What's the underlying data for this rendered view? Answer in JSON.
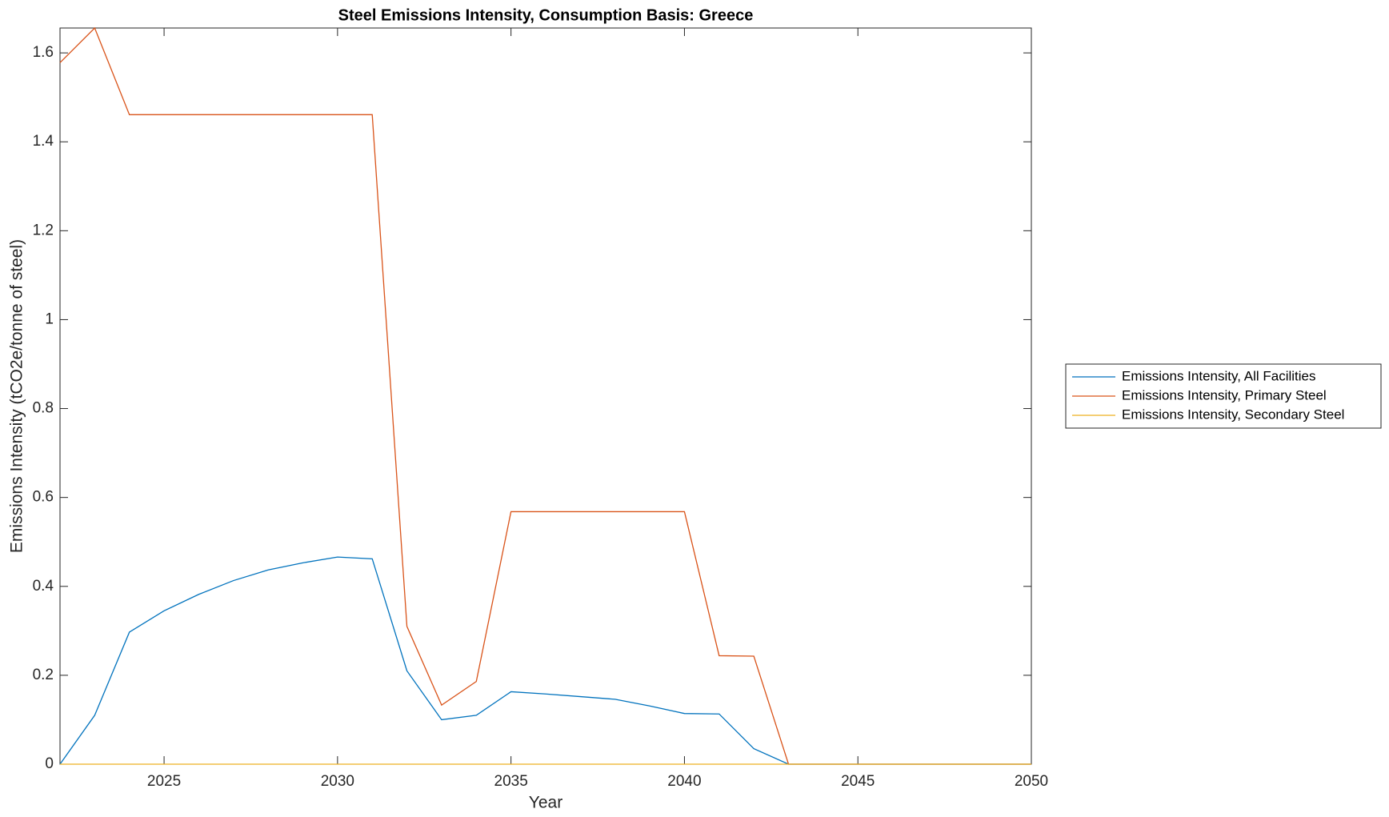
{
  "chart_data": {
    "type": "line",
    "title": "Steel Emissions Intensity, Consumption Basis: Greece",
    "x_label": "Year",
    "y_label": "Emissions Intensity (tCO2e/tonne of steel)",
    "x": [
      2022,
      2023,
      2024,
      2025,
      2026,
      2027,
      2028,
      2029,
      2030,
      2031,
      2032,
      2033,
      2034,
      2035,
      2036,
      2037,
      2038,
      2039,
      2040,
      2041,
      2042,
      2043,
      2044,
      2045,
      2046,
      2047,
      2048,
      2049,
      2050
    ],
    "series": [
      {
        "name": "Emissions Intensity, All Facilities",
        "color": "#0072bd",
        "values": [
          0,
          0.11,
          0.297,
          0.345,
          0.382,
          0.413,
          0.437,
          0.453,
          0.466,
          0.462,
          0.21,
          0.1,
          0.11,
          0.163,
          0.158,
          0.152,
          0.146,
          0.131,
          0.114,
          0.113,
          0.035,
          0,
          0,
          0,
          0,
          0,
          0,
          0,
          0
        ]
      },
      {
        "name": "Emissions Intensity, Primary Steel",
        "color": "#d95319",
        "values": [
          1.578,
          1.656,
          1.461,
          1.461,
          1.461,
          1.461,
          1.461,
          1.461,
          1.461,
          1.461,
          0.31,
          0.133,
          0.186,
          0.568,
          0.568,
          0.568,
          0.568,
          0.568,
          0.568,
          0.244,
          0.243,
          0,
          0,
          0,
          0,
          0,
          0,
          0,
          0
        ]
      },
      {
        "name": "Emissions Intensity, Secondary Steel",
        "color": "#edb120",
        "values": [
          0,
          0,
          0,
          0,
          0,
          0,
          0,
          0,
          0,
          0,
          0,
          0,
          0,
          0,
          0,
          0,
          0,
          0,
          0,
          0,
          0,
          0,
          0,
          0,
          0,
          0,
          0,
          0,
          0
        ]
      }
    ],
    "xlim": [
      2022,
      2050
    ],
    "xticks": [
      2025,
      2030,
      2035,
      2040,
      2045,
      2050
    ],
    "ylim": [
      0,
      1.656
    ],
    "yticks": [
      0,
      0.2,
      0.4,
      0.6,
      0.8,
      1,
      1.2,
      1.4,
      1.6
    ],
    "grid": false,
    "legend_position": "outside-right"
  }
}
